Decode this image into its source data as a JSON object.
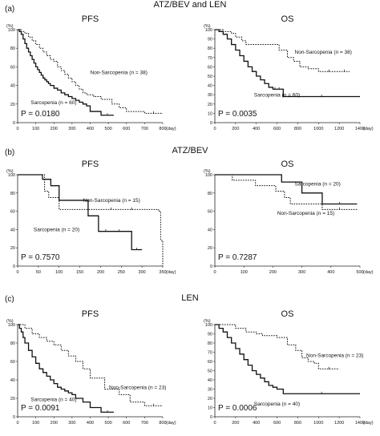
{
  "figure": {
    "panels": [
      {
        "letter": "(a)",
        "heading": "ATZ/BEV and LEN"
      },
      {
        "letter": "(b)",
        "heading": "ATZ/BEV"
      },
      {
        "letter": "(c)",
        "heading": "LEN"
      }
    ]
  },
  "chart_data": [
    {
      "type": "line",
      "title": "PFS",
      "panel": "(a)",
      "ylabel": "(%)",
      "xlabel": "(day)",
      "xlim": [
        0,
        800
      ],
      "ylim": [
        0,
        100
      ],
      "xticks": [
        0,
        100,
        200,
        300,
        400,
        500,
        600,
        700,
        800
      ],
      "yticks": [
        0,
        20,
        40,
        60,
        80,
        100
      ],
      "pvalue": "P = 0.0180",
      "series": [
        {
          "name": "Sarcopenia (n = 60)",
          "style": "solid",
          "x": [
            0,
            10,
            20,
            30,
            40,
            50,
            60,
            70,
            80,
            90,
            100,
            110,
            120,
            130,
            140,
            150,
            160,
            170,
            180,
            200,
            220,
            240,
            260,
            280,
            300,
            320,
            340,
            360,
            380,
            400,
            460,
            530
          ],
          "y": [
            100,
            98,
            95,
            90,
            85,
            80,
            76,
            72,
            68,
            64,
            60,
            57,
            54,
            51,
            48,
            46,
            44,
            42,
            40,
            37,
            35,
            32,
            30,
            28,
            26,
            24,
            22,
            20,
            18,
            12,
            8,
            8
          ]
        },
        {
          "name": "Non-Sarcopenia (n = 38)",
          "style": "dotted",
          "x": [
            0,
            20,
            40,
            60,
            80,
            100,
            120,
            140,
            160,
            180,
            200,
            220,
            240,
            260,
            280,
            300,
            320,
            340,
            360,
            380,
            420,
            460,
            520,
            560,
            600,
            700,
            800
          ],
          "y": [
            100,
            98,
            96,
            92,
            88,
            84,
            80,
            76,
            72,
            68,
            66,
            60,
            56,
            52,
            48,
            44,
            40,
            36,
            32,
            30,
            28,
            25,
            20,
            16,
            12,
            10,
            10
          ]
        }
      ]
    },
    {
      "type": "line",
      "title": "OS",
      "panel": "(a)",
      "ylabel": "(%)",
      "xlabel": "(day)",
      "xlim": [
        0,
        1400
      ],
      "ylim": [
        0,
        100
      ],
      "xticks": [
        0,
        200,
        400,
        600,
        800,
        1000,
        1200,
        1400
      ],
      "yticks": [
        0,
        10,
        20,
        30,
        40,
        50,
        60,
        70,
        80,
        90,
        100
      ],
      "pvalue": "P = 0.0035",
      "series": [
        {
          "name": "Sarcopenia (n = 60)",
          "style": "solid",
          "x": [
            0,
            40,
            80,
            120,
            160,
            200,
            240,
            280,
            320,
            360,
            400,
            440,
            480,
            520,
            560,
            600,
            640,
            660,
            1400
          ],
          "y": [
            100,
            98,
            95,
            90,
            84,
            78,
            72,
            66,
            60,
            55,
            50,
            46,
            42,
            38,
            36,
            36,
            36,
            28,
            28
          ]
        },
        {
          "name": "Non-Sarcopenia (n = 38)",
          "style": "dotted",
          "x": [
            0,
            80,
            160,
            200,
            260,
            300,
            400,
            500,
            620,
            700,
            760,
            820,
            900,
            1000,
            1200,
            1300
          ],
          "y": [
            100,
            98,
            96,
            92,
            88,
            84,
            84,
            84,
            78,
            70,
            66,
            60,
            58,
            55,
            55,
            55
          ]
        }
      ]
    },
    {
      "type": "line",
      "title": "PFS",
      "panel": "(b)",
      "ylabel": "(%)",
      "xlabel": "(day)",
      "xlim": [
        0,
        350
      ],
      "ylim": [
        0,
        100
      ],
      "xticks": [
        0,
        50,
        100,
        150,
        200,
        250,
        300,
        350
      ],
      "yticks": [
        0,
        20,
        40,
        60,
        80,
        100
      ],
      "pvalue": "P = 0.7570",
      "series": [
        {
          "name": "Sarcopenia (n = 20)",
          "style": "solid",
          "x": [
            0,
            40,
            60,
            80,
            100,
            140,
            170,
            195,
            230,
            260,
            275,
            300
          ],
          "y": [
            100,
            100,
            95,
            88,
            72,
            72,
            55,
            38,
            38,
            38,
            18,
            18
          ]
        },
        {
          "name": "Non-Sarcopenia (n = 15)",
          "style": "dotted",
          "x": [
            0,
            55,
            65,
            75,
            100,
            150,
            200,
            250,
            300,
            340,
            345,
            350
          ],
          "y": [
            100,
            100,
            82,
            75,
            62,
            62,
            62,
            62,
            62,
            60,
            28,
            0
          ]
        }
      ]
    },
    {
      "type": "line",
      "title": "OS",
      "panel": "(b)",
      "ylabel": "(%)",
      "xlabel": "(day)",
      "xlim": [
        0,
        500
      ],
      "ylim": [
        0,
        100
      ],
      "xticks": [
        0,
        100,
        200,
        300,
        400,
        500
      ],
      "yticks": [
        0,
        20,
        40,
        60,
        80,
        100
      ],
      "pvalue": "P = 0.7287",
      "series": [
        {
          "name": "Sarcopenia (n = 20)",
          "style": "solid",
          "x": [
            0,
            200,
            230,
            300,
            370,
            490
          ],
          "y": [
            100,
            100,
            92,
            80,
            68,
            68
          ]
        },
        {
          "name": "Non-Sarcopenia (n = 15)",
          "style": "dotted",
          "x": [
            0,
            60,
            140,
            210,
            240,
            260,
            370,
            490
          ],
          "y": [
            100,
            94,
            88,
            82,
            75,
            68,
            62,
            62
          ]
        }
      ]
    },
    {
      "type": "line",
      "title": "PFS",
      "panel": "(c)",
      "ylabel": "(%)",
      "xlabel": "(day)",
      "xlim": [
        0,
        800
      ],
      "ylim": [
        0,
        100
      ],
      "xticks": [
        0,
        100,
        200,
        300,
        400,
        500,
        600,
        700,
        800
      ],
      "yticks": [
        0,
        20,
        40,
        60,
        80,
        100
      ],
      "pvalue": "P = 0.0091",
      "series": [
        {
          "name": "Sarcopenia (n = 40)",
          "style": "solid",
          "x": [
            0,
            10,
            20,
            30,
            40,
            60,
            80,
            100,
            120,
            140,
            160,
            180,
            200,
            220,
            240,
            260,
            280,
            300,
            320,
            360,
            400,
            460,
            530
          ],
          "y": [
            100,
            96,
            92,
            86,
            80,
            72,
            65,
            58,
            52,
            48,
            44,
            40,
            36,
            32,
            30,
            28,
            26,
            24,
            20,
            16,
            10,
            5,
            5
          ]
        },
        {
          "name": "Non-Sarcopenia (n = 23)",
          "style": "dotted",
          "x": [
            0,
            40,
            80,
            120,
            160,
            200,
            240,
            280,
            320,
            360,
            400,
            480,
            560,
            620,
            700,
            800
          ],
          "y": [
            100,
            96,
            90,
            86,
            82,
            78,
            72,
            66,
            60,
            52,
            42,
            30,
            24,
            16,
            12,
            12
          ]
        }
      ]
    },
    {
      "type": "line",
      "title": "OS",
      "panel": "(c)",
      "ylabel": "(%)",
      "xlabel": "(day)",
      "xlim": [
        0,
        1400
      ],
      "ylim": [
        0,
        100
      ],
      "xticks": [
        0,
        200,
        400,
        600,
        800,
        1000,
        1200,
        1400
      ],
      "yticks": [
        0,
        10,
        20,
        30,
        40,
        50,
        60,
        70,
        80,
        90,
        100
      ],
      "pvalue": "P = 0.0006",
      "series": [
        {
          "name": "Sarcopenia (n = 40)",
          "style": "solid",
          "x": [
            0,
            40,
            80,
            120,
            160,
            200,
            240,
            280,
            320,
            360,
            400,
            440,
            480,
            520,
            560,
            600,
            660,
            1400
          ],
          "y": [
            100,
            96,
            92,
            86,
            80,
            74,
            68,
            62,
            56,
            50,
            46,
            42,
            38,
            34,
            32,
            30,
            25,
            25
          ]
        },
        {
          "name": "Non-Sarcopenia (n = 23)",
          "style": "dotted",
          "x": [
            0,
            200,
            300,
            400,
            460,
            520,
            600,
            700,
            780,
            840,
            900,
            960,
            1000,
            1200
          ],
          "y": [
            100,
            96,
            92,
            90,
            88,
            88,
            86,
            78,
            72,
            64,
            60,
            58,
            52,
            52
          ]
        }
      ]
    }
  ]
}
